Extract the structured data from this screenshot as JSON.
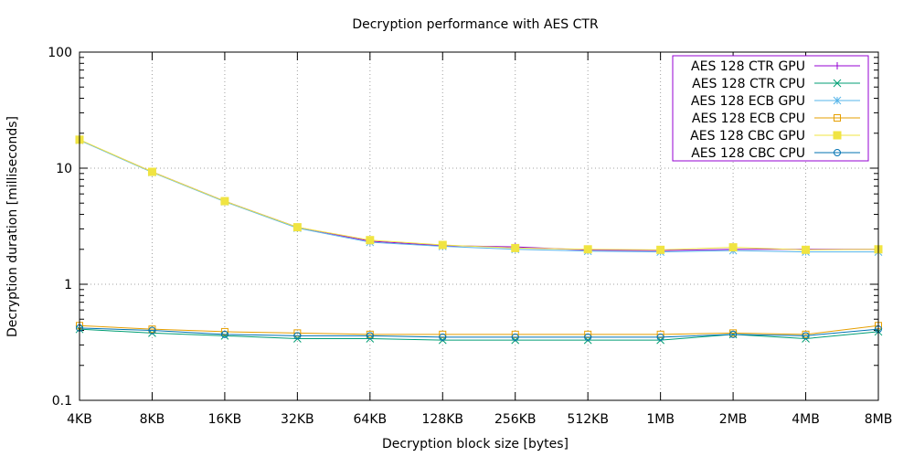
{
  "chart_data": {
    "type": "line",
    "title": "Decryption performance with AES CTR",
    "xlabel": "Decryption block size [bytes]",
    "ylabel": "Decryption duration [milliseconds]",
    "yscale": "log",
    "ylim": [
      0.1,
      100
    ],
    "yticks": [
      "0.1",
      "1",
      "10",
      "100"
    ],
    "grid": true,
    "legend_position": "top-right",
    "categories": [
      "4KB",
      "8KB",
      "16KB",
      "32KB",
      "64KB",
      "128KB",
      "256KB",
      "512KB",
      "1MB",
      "2MB",
      "4MB",
      "8MB"
    ],
    "series": [
      {
        "name": "AES 128 CTR GPU",
        "color": "#9400d3",
        "marker": "plus",
        "values": [
          17.5,
          9.3,
          5.2,
          3.1,
          2.35,
          2.15,
          2.1,
          1.97,
          1.95,
          2.0,
          2.0,
          2.0
        ]
      },
      {
        "name": "AES 128 CTR CPU",
        "color": "#009e73",
        "marker": "cross",
        "values": [
          0.41,
          0.38,
          0.36,
          0.34,
          0.34,
          0.33,
          0.33,
          0.33,
          0.33,
          0.37,
          0.34,
          0.39
        ]
      },
      {
        "name": "AES 128 ECB GPU",
        "color": "#56b4e9",
        "marker": "star",
        "values": [
          17.4,
          9.2,
          5.15,
          3.05,
          2.3,
          2.12,
          2.0,
          1.93,
          1.9,
          1.95,
          1.9,
          1.9
        ]
      },
      {
        "name": "AES 128 ECB CPU",
        "color": "#e69f00",
        "marker": "open-square",
        "values": [
          0.44,
          0.41,
          0.39,
          0.38,
          0.37,
          0.37,
          0.37,
          0.37,
          0.37,
          0.38,
          0.37,
          0.44
        ]
      },
      {
        "name": "AES 128 CBC GPU",
        "color": "#f0e442",
        "marker": "filled-square",
        "values": [
          17.6,
          9.3,
          5.2,
          3.1,
          2.4,
          2.18,
          2.05,
          2.0,
          1.98,
          2.08,
          1.98,
          2.0
        ]
      },
      {
        "name": "AES 128 CBC CPU",
        "color": "#0072b2",
        "marker": "open-circle",
        "values": [
          0.42,
          0.4,
          0.37,
          0.36,
          0.36,
          0.35,
          0.35,
          0.35,
          0.35,
          0.37,
          0.36,
          0.41
        ]
      }
    ]
  }
}
